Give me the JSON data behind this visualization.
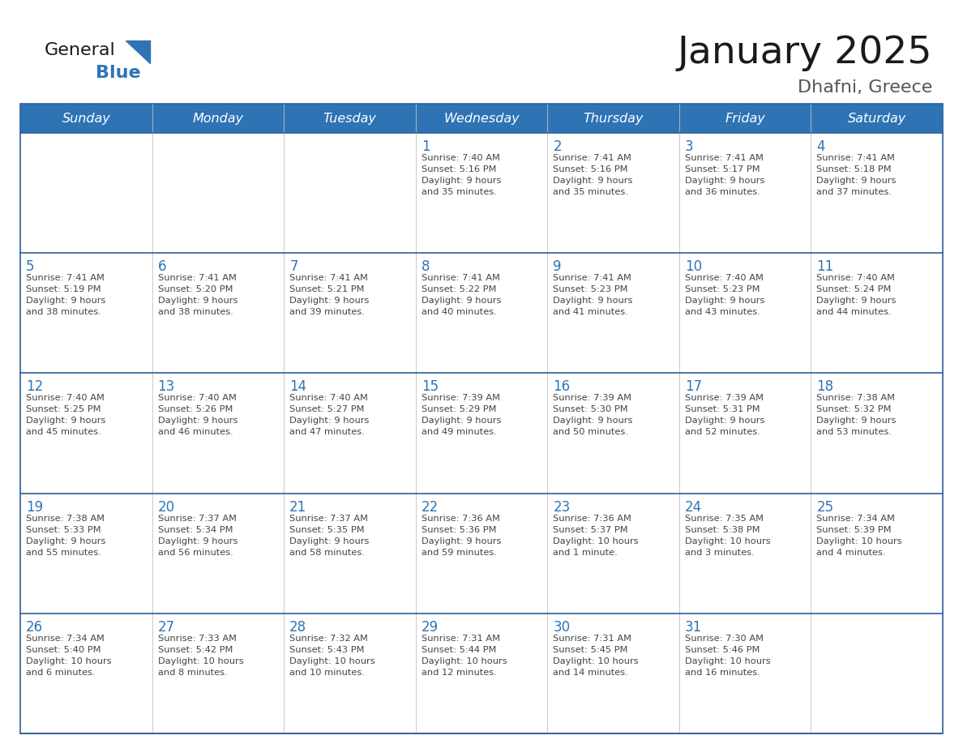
{
  "title": "January 2025",
  "subtitle": "Dhafni, Greece",
  "days_of_week": [
    "Sunday",
    "Monday",
    "Tuesday",
    "Wednesday",
    "Thursday",
    "Friday",
    "Saturday"
  ],
  "header_bg": "#2E74B5",
  "header_text": "#FFFFFF",
  "cell_bg_white": "#FFFFFF",
  "cell_bg_gray": "#F2F2F2",
  "row_line_color": "#2E6099",
  "day_num_color": "#2E74B5",
  "cell_text_color": "#444444",
  "logo_general_color": "#1a1a1a",
  "logo_blue_color": "#2E74B5",
  "title_color": "#1a1a1a",
  "subtitle_color": "#555555",
  "calendar_data": [
    [
      {
        "day": null,
        "info": null
      },
      {
        "day": null,
        "info": null
      },
      {
        "day": null,
        "info": null
      },
      {
        "day": 1,
        "info": "Sunrise: 7:40 AM\nSunset: 5:16 PM\nDaylight: 9 hours\nand 35 minutes."
      },
      {
        "day": 2,
        "info": "Sunrise: 7:41 AM\nSunset: 5:16 PM\nDaylight: 9 hours\nand 35 minutes."
      },
      {
        "day": 3,
        "info": "Sunrise: 7:41 AM\nSunset: 5:17 PM\nDaylight: 9 hours\nand 36 minutes."
      },
      {
        "day": 4,
        "info": "Sunrise: 7:41 AM\nSunset: 5:18 PM\nDaylight: 9 hours\nand 37 minutes."
      }
    ],
    [
      {
        "day": 5,
        "info": "Sunrise: 7:41 AM\nSunset: 5:19 PM\nDaylight: 9 hours\nand 38 minutes."
      },
      {
        "day": 6,
        "info": "Sunrise: 7:41 AM\nSunset: 5:20 PM\nDaylight: 9 hours\nand 38 minutes."
      },
      {
        "day": 7,
        "info": "Sunrise: 7:41 AM\nSunset: 5:21 PM\nDaylight: 9 hours\nand 39 minutes."
      },
      {
        "day": 8,
        "info": "Sunrise: 7:41 AM\nSunset: 5:22 PM\nDaylight: 9 hours\nand 40 minutes."
      },
      {
        "day": 9,
        "info": "Sunrise: 7:41 AM\nSunset: 5:23 PM\nDaylight: 9 hours\nand 41 minutes."
      },
      {
        "day": 10,
        "info": "Sunrise: 7:40 AM\nSunset: 5:23 PM\nDaylight: 9 hours\nand 43 minutes."
      },
      {
        "day": 11,
        "info": "Sunrise: 7:40 AM\nSunset: 5:24 PM\nDaylight: 9 hours\nand 44 minutes."
      }
    ],
    [
      {
        "day": 12,
        "info": "Sunrise: 7:40 AM\nSunset: 5:25 PM\nDaylight: 9 hours\nand 45 minutes."
      },
      {
        "day": 13,
        "info": "Sunrise: 7:40 AM\nSunset: 5:26 PM\nDaylight: 9 hours\nand 46 minutes."
      },
      {
        "day": 14,
        "info": "Sunrise: 7:40 AM\nSunset: 5:27 PM\nDaylight: 9 hours\nand 47 minutes."
      },
      {
        "day": 15,
        "info": "Sunrise: 7:39 AM\nSunset: 5:29 PM\nDaylight: 9 hours\nand 49 minutes."
      },
      {
        "day": 16,
        "info": "Sunrise: 7:39 AM\nSunset: 5:30 PM\nDaylight: 9 hours\nand 50 minutes."
      },
      {
        "day": 17,
        "info": "Sunrise: 7:39 AM\nSunset: 5:31 PM\nDaylight: 9 hours\nand 52 minutes."
      },
      {
        "day": 18,
        "info": "Sunrise: 7:38 AM\nSunset: 5:32 PM\nDaylight: 9 hours\nand 53 minutes."
      }
    ],
    [
      {
        "day": 19,
        "info": "Sunrise: 7:38 AM\nSunset: 5:33 PM\nDaylight: 9 hours\nand 55 minutes."
      },
      {
        "day": 20,
        "info": "Sunrise: 7:37 AM\nSunset: 5:34 PM\nDaylight: 9 hours\nand 56 minutes."
      },
      {
        "day": 21,
        "info": "Sunrise: 7:37 AM\nSunset: 5:35 PM\nDaylight: 9 hours\nand 58 minutes."
      },
      {
        "day": 22,
        "info": "Sunrise: 7:36 AM\nSunset: 5:36 PM\nDaylight: 9 hours\nand 59 minutes."
      },
      {
        "day": 23,
        "info": "Sunrise: 7:36 AM\nSunset: 5:37 PM\nDaylight: 10 hours\nand 1 minute."
      },
      {
        "day": 24,
        "info": "Sunrise: 7:35 AM\nSunset: 5:38 PM\nDaylight: 10 hours\nand 3 minutes."
      },
      {
        "day": 25,
        "info": "Sunrise: 7:34 AM\nSunset: 5:39 PM\nDaylight: 10 hours\nand 4 minutes."
      }
    ],
    [
      {
        "day": 26,
        "info": "Sunrise: 7:34 AM\nSunset: 5:40 PM\nDaylight: 10 hours\nand 6 minutes."
      },
      {
        "day": 27,
        "info": "Sunrise: 7:33 AM\nSunset: 5:42 PM\nDaylight: 10 hours\nand 8 minutes."
      },
      {
        "day": 28,
        "info": "Sunrise: 7:32 AM\nSunset: 5:43 PM\nDaylight: 10 hours\nand 10 minutes."
      },
      {
        "day": 29,
        "info": "Sunrise: 7:31 AM\nSunset: 5:44 PM\nDaylight: 10 hours\nand 12 minutes."
      },
      {
        "day": 30,
        "info": "Sunrise: 7:31 AM\nSunset: 5:45 PM\nDaylight: 10 hours\nand 14 minutes."
      },
      {
        "day": 31,
        "info": "Sunrise: 7:30 AM\nSunset: 5:46 PM\nDaylight: 10 hours\nand 16 minutes."
      },
      {
        "day": null,
        "info": null
      }
    ]
  ]
}
